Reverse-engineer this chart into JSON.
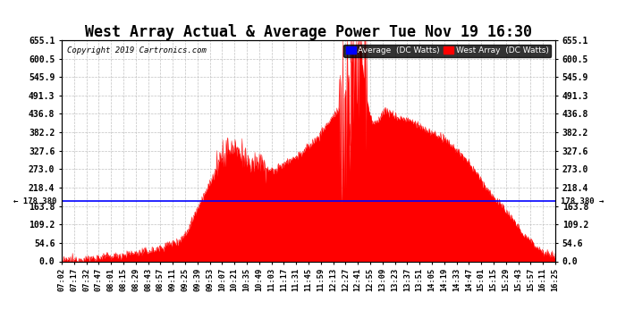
{
  "title": "West Array Actual & Average Power Tue Nov 19 16:30",
  "copyright": "Copyright 2019 Cartronics.com",
  "legend_labels": [
    "Average  (DC Watts)",
    "West Array  (DC Watts)"
  ],
  "legend_colors": [
    "#0000ff",
    "#ff0000"
  ],
  "avg_value": 178.38,
  "ymin": 0.0,
  "ymax": 655.1,
  "yticks": [
    0.0,
    54.6,
    109.2,
    163.8,
    218.4,
    273.0,
    327.6,
    382.2,
    436.8,
    491.3,
    545.9,
    600.5,
    655.1
  ],
  "background_color": "#ffffff",
  "plot_bg_color": "#ffffff",
  "grid_color": "#bbbbbb",
  "title_fontsize": 12,
  "x_tick_labels": [
    "07:02",
    "07:17",
    "07:32",
    "07:47",
    "08:01",
    "08:15",
    "08:29",
    "08:43",
    "08:57",
    "09:11",
    "09:25",
    "09:39",
    "09:53",
    "10:07",
    "10:21",
    "10:35",
    "10:49",
    "11:03",
    "11:17",
    "11:31",
    "11:45",
    "11:59",
    "12:13",
    "12:27",
    "12:41",
    "12:55",
    "13:09",
    "13:23",
    "13:37",
    "13:51",
    "14:05",
    "14:19",
    "14:33",
    "14:47",
    "15:01",
    "15:15",
    "15:29",
    "15:43",
    "15:57",
    "16:11",
    "16:25"
  ]
}
